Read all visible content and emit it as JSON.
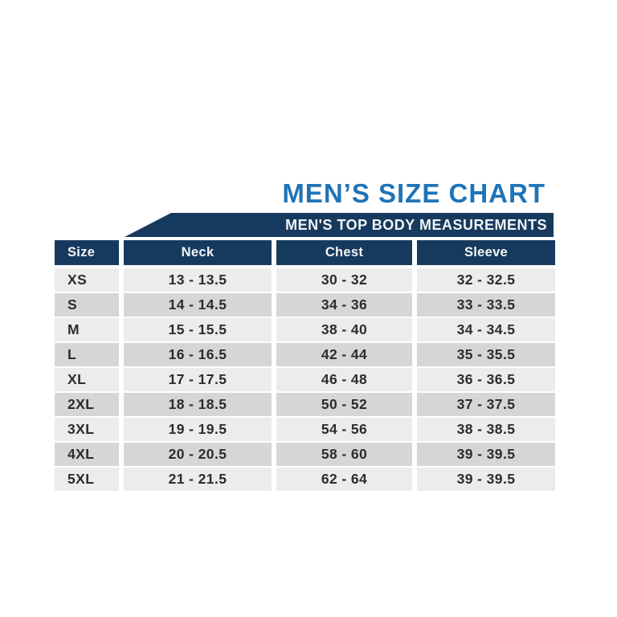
{
  "title": "MEN’S SIZE CHART",
  "banner": {
    "label": "MEN'S TOP BODY MEASUREMENTS"
  },
  "theme": {
    "title_blue": "#1e74b8",
    "navy": "#163a5e",
    "header_text": "#f4f5f6",
    "row_light": "#ececee",
    "row_dark": "#d6d6d8",
    "cell_text": "#2c2c2e",
    "background": "#ffffff"
  },
  "chart_data": {
    "type": "table",
    "title": "MEN’S SIZE CHART",
    "subtitle": "MEN'S TOP BODY MEASUREMENTS",
    "columns": [
      "Size",
      "Neck",
      "Chest",
      "Sleeve"
    ],
    "rows": [
      [
        "XS",
        "13 - 13.5",
        "30 - 32",
        "32 - 32.5"
      ],
      [
        "S",
        "14 - 14.5",
        "34 - 36",
        "33 - 33.5"
      ],
      [
        "M",
        "15 - 15.5",
        "38 - 40",
        "34 - 34.5"
      ],
      [
        "L",
        "16 - 16.5",
        "42 - 44",
        "35 - 35.5"
      ],
      [
        "XL",
        "17 - 17.5",
        "46 - 48",
        "36 - 36.5"
      ],
      [
        "2XL",
        "18 - 18.5",
        "50 - 52",
        "37 - 37.5"
      ],
      [
        "3XL",
        "19 - 19.5",
        "54 - 56",
        "38 - 38.5"
      ],
      [
        "4XL",
        "20 - 20.5",
        "58 - 60",
        "39 - 39.5"
      ],
      [
        "5XL",
        "21 - 21.5",
        "62 - 64",
        "39 - 39.5"
      ]
    ],
    "layout": {
      "row_striping": "alternating light/dark starting light",
      "header_style": "navy bar with white text",
      "grid": "off"
    }
  }
}
